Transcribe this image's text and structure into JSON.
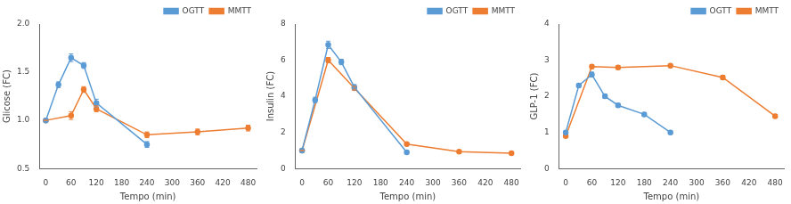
{
  "chart_data": [
    {
      "type": "line",
      "xlabel": "Tempo (min)",
      "ylabel": "Glicose (FC)",
      "xlim": [
        -15,
        500
      ],
      "xticks": [
        0,
        60,
        120,
        180,
        240,
        300,
        360,
        420,
        480
      ],
      "ylim": [
        0.5,
        2.0
      ],
      "yticks": [
        0.5,
        {
          "value": 1.0,
          "label": "1.0"
        },
        1.5,
        {
          "value": 2.0,
          "label": "2.0"
        }
      ],
      "grid": false,
      "legend": "upper right",
      "series": [
        {
          "name": "OGTT",
          "color": "#5B9BD5",
          "marker": "o",
          "line_style": "solid",
          "x": [
            0,
            30,
            60,
            90,
            120,
            240
          ],
          "values": [
            1.0,
            1.37,
            1.65,
            1.57,
            1.18,
            0.75
          ],
          "errors": [
            0.0,
            0.03,
            0.04,
            0.03,
            0.04,
            0.03
          ]
        },
        {
          "name": "MMTT",
          "color": "#ED7D31",
          "marker": "o",
          "line_style": "solid",
          "x": [
            0,
            60,
            90,
            120,
            240,
            360,
            480
          ],
          "values": [
            1.0,
            1.05,
            1.32,
            1.12,
            0.85,
            0.88,
            0.92
          ],
          "errors": [
            0.0,
            0.04,
            0.03,
            0.03,
            0.03,
            0.03,
            0.03
          ]
        }
      ]
    },
    {
      "type": "line",
      "xlabel": "Tempo (min)",
      "ylabel": "Insulin (FC)",
      "xlim": [
        -15,
        500
      ],
      "xticks": [
        0,
        60,
        120,
        180,
        240,
        300,
        360,
        420,
        480
      ],
      "ylim": [
        0,
        8
      ],
      "yticks": [
        0,
        2,
        4,
        6,
        8
      ],
      "grid": false,
      "legend": "upper right",
      "series": [
        {
          "name": "OGTT",
          "color": "#5B9BD5",
          "marker": "o",
          "line_style": "solid",
          "x": [
            0,
            30,
            60,
            90,
            120,
            240
          ],
          "values": [
            1.0,
            3.8,
            6.85,
            5.9,
            4.5,
            0.9
          ],
          "errors": [
            0.0,
            0.15,
            0.2,
            0.15,
            0.15,
            0.06
          ]
        },
        {
          "name": "MMTT",
          "color": "#ED7D31",
          "marker": "o",
          "line_style": "solid",
          "x": [
            0,
            60,
            120,
            240,
            360,
            480
          ],
          "values": [
            1.0,
            6.0,
            4.45,
            1.35,
            0.93,
            0.85
          ],
          "errors": [
            0.0,
            0.15,
            0.1,
            0.05,
            0.04,
            0.04
          ]
        }
      ]
    },
    {
      "type": "line",
      "xlabel": "Tempo (min)",
      "ylabel": "GLP-1 (FC)",
      "xlim": [
        -15,
        500
      ],
      "xticks": [
        0,
        60,
        120,
        180,
        240,
        300,
        360,
        420,
        480
      ],
      "ylim": [
        0,
        4
      ],
      "yticks": [
        0,
        1,
        2,
        3,
        4
      ],
      "grid": false,
      "legend": "upper right",
      "series": [
        {
          "name": "OGTT",
          "color": "#5B9BD5",
          "marker": "o",
          "line_style": "solid",
          "x": [
            0,
            30,
            60,
            90,
            120,
            180,
            240
          ],
          "values": [
            1.0,
            2.3,
            2.6,
            2.0,
            1.75,
            1.5,
            1.0
          ],
          "errors": [
            0.0,
            0.05,
            0.07,
            0.06,
            0.05,
            0.05,
            0.04
          ]
        },
        {
          "name": "MMTT",
          "color": "#ED7D31",
          "marker": "o",
          "line_style": "solid",
          "x": [
            0,
            60,
            120,
            240,
            360,
            480
          ],
          "values": [
            0.9,
            2.82,
            2.8,
            2.85,
            2.52,
            1.45
          ],
          "errors": [
            0.0,
            0.05,
            0.05,
            0.05,
            0.06,
            0.05
          ]
        }
      ]
    }
  ]
}
